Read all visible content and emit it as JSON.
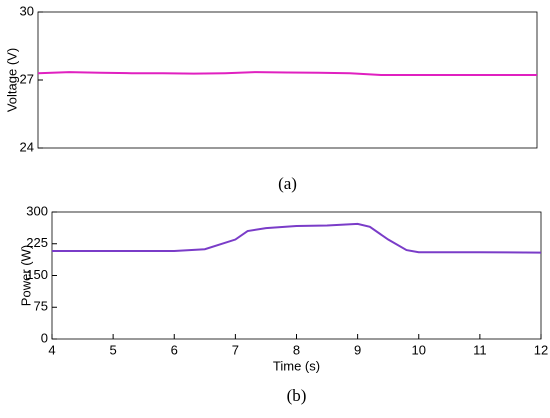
{
  "chart_data": [
    {
      "type": "line",
      "caption": "(a)",
      "ylabel": "Voltage (V)",
      "x": [
        4,
        4.5,
        5,
        5.5,
        6,
        6.5,
        7,
        7.5,
        8,
        8.5,
        9,
        9.5,
        10,
        10.5,
        11,
        11.5,
        12
      ],
      "series": [
        {
          "name": "Voltage",
          "color": "#e020c0",
          "values": [
            27.3,
            27.35,
            27.32,
            27.3,
            27.3,
            27.28,
            27.3,
            27.35,
            27.33,
            27.32,
            27.3,
            27.22,
            27.22,
            27.22,
            27.22,
            27.22,
            27.22
          ]
        }
      ],
      "xlim": [
        4,
        12
      ],
      "ylim": [
        24,
        30
      ],
      "yticks": [
        24,
        27,
        30
      ]
    },
    {
      "type": "line",
      "caption": "(b)",
      "ylabel": "Power (W)",
      "xlabel": "Time (s)",
      "x": [
        4,
        5,
        6,
        6.5,
        7,
        7.2,
        7.5,
        8,
        8.5,
        9,
        9.2,
        9.5,
        9.8,
        10,
        11,
        12
      ],
      "series": [
        {
          "name": "Power",
          "color": "#7a3cc8",
          "values": [
            208,
            208,
            208,
            212,
            235,
            255,
            262,
            267,
            268,
            272,
            265,
            235,
            210,
            205,
            205,
            204
          ]
        }
      ],
      "xlim": [
        4,
        12
      ],
      "xticks": [
        4,
        5,
        6,
        7,
        8,
        9,
        10,
        11,
        12
      ],
      "ylim": [
        0,
        300
      ],
      "yticks": [
        0,
        75,
        150,
        225,
        300
      ]
    }
  ]
}
